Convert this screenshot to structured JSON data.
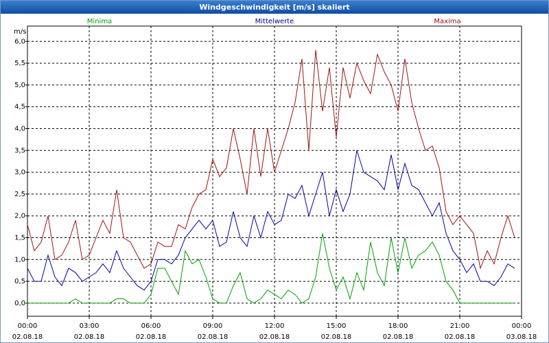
{
  "chart_data": {
    "type": "line",
    "title": "Windgeschwindigkeit [m/s] skaliert",
    "y_label": "m/s",
    "x": [
      0,
      20,
      40,
      60,
      80,
      100,
      120,
      140,
      160,
      180,
      200,
      220,
      240,
      260,
      280,
      300,
      320,
      340,
      360,
      380,
      400,
      420,
      440,
      460,
      480,
      500,
      520,
      540,
      560,
      580,
      600,
      620,
      640,
      660,
      680,
      700,
      720,
      740,
      760,
      780,
      800,
      820,
      840,
      860,
      880,
      900,
      920,
      940,
      960,
      980,
      1000,
      1020,
      1040,
      1060,
      1080,
      1100,
      1120,
      1140,
      1160,
      1180,
      1200,
      1220,
      1240,
      1260,
      1280,
      1300,
      1320,
      1340,
      1360,
      1380,
      1400,
      1420
    ],
    "xlim": [
      0,
      1440
    ],
    "xticks": [
      {
        "value": 0,
        "label": "00:00"
      },
      {
        "value": 180,
        "label": "03:00"
      },
      {
        "value": 360,
        "label": "06:00"
      },
      {
        "value": 540,
        "label": "09:00"
      },
      {
        "value": 720,
        "label": "12:00"
      },
      {
        "value": 900,
        "label": "15:00"
      },
      {
        "value": 1080,
        "label": "18:00"
      },
      {
        "value": 1260,
        "label": "21:00"
      },
      {
        "value": 1440,
        "label": "00:00"
      }
    ],
    "xtick_dates": [
      "02.08.18",
      "02.08.18",
      "02.08.18",
      "02.08.18",
      "02.08.18",
      "02.08.18",
      "02.08.18",
      "02.08.18",
      "03.08.18"
    ],
    "ylim": [
      -0.3,
      6.35
    ],
    "yticks": [
      {
        "value": 0,
        "label": "0,0"
      },
      {
        "value": 0.5,
        "label": "0,5"
      },
      {
        "value": 1,
        "label": "1,0"
      },
      {
        "value": 1.5,
        "label": "1,5"
      },
      {
        "value": 2,
        "label": "2,0"
      },
      {
        "value": 2.5,
        "label": "2,5"
      },
      {
        "value": 3,
        "label": "3,0"
      },
      {
        "value": 3.5,
        "label": "3,5"
      },
      {
        "value": 4,
        "label": "4,0"
      },
      {
        "value": 4.5,
        "label": "4,5"
      },
      {
        "value": 5,
        "label": "5,0"
      },
      {
        "value": 5.5,
        "label": "5,5"
      },
      {
        "value": 6,
        "label": "6,0"
      }
    ],
    "grid": true,
    "series": [
      {
        "name": "Minima",
        "color": "#00a000",
        "values": [
          0,
          0,
          0,
          0,
          0,
          0,
          0,
          0.1,
          0,
          0,
          0,
          0,
          0,
          0.1,
          0.1,
          0,
          0,
          0,
          0.2,
          0.8,
          0.8,
          0.5,
          0.2,
          1.2,
          0.9,
          1.0,
          0.6,
          0.1,
          0,
          0,
          0.4,
          0.7,
          0.1,
          0,
          0.1,
          0.3,
          0.2,
          0.1,
          0.3,
          0.2,
          0,
          0.1,
          0.6,
          1.6,
          0.8,
          0.3,
          0.6,
          0.1,
          0.7,
          0.3,
          1.4,
          0.7,
          0.4,
          1.5,
          0.7,
          1.5,
          0.8,
          1.1,
          1.2,
          1.4,
          1.1,
          0.5,
          0.3,
          0,
          0,
          0,
          0,
          0,
          0,
          0,
          0,
          0
        ]
      },
      {
        "name": "Mittelwerte",
        "color": "#0000a0",
        "values": [
          0.8,
          0.5,
          0.5,
          1.1,
          0.6,
          0.4,
          0.8,
          0.7,
          0.5,
          0.6,
          0.7,
          0.9,
          0.7,
          1.2,
          0.8,
          0.6,
          0.4,
          0.3,
          0.5,
          1.0,
          1.0,
          0.9,
          1.1,
          1.5,
          1.7,
          1.9,
          1.7,
          1.9,
          1.3,
          1.4,
          2.1,
          1.5,
          1.3,
          2.0,
          1.5,
          2.1,
          1.8,
          1.9,
          2.5,
          2.4,
          2.7,
          2.0,
          2.5,
          3.0,
          2.0,
          2.6,
          2.1,
          2.5,
          3.5,
          3.0,
          2.9,
          2.8,
          2.6,
          3.4,
          2.6,
          3.2,
          2.7,
          2.6,
          2.3,
          2.0,
          2.3,
          1.6,
          1.2,
          1.0,
          0.7,
          0.9,
          0.5,
          0.5,
          0.4,
          0.6,
          0.9,
          0.8
        ]
      },
      {
        "name": "Maxima",
        "color": "#a01010",
        "values": [
          1.8,
          1.2,
          1.4,
          2.0,
          1.0,
          1.1,
          1.4,
          1.9,
          1.0,
          1.1,
          1.5,
          1.9,
          1.6,
          2.6,
          1.5,
          1.4,
          1.1,
          0.8,
          0.9,
          1.4,
          1.3,
          1.3,
          1.8,
          1.7,
          2.2,
          2.5,
          2.6,
          3.3,
          2.9,
          3.1,
          4.0,
          3.3,
          2.5,
          4.0,
          2.9,
          4.0,
          3.0,
          3.5,
          4.0,
          4.6,
          5.6,
          3.5,
          5.8,
          4.4,
          5.4,
          3.8,
          5.4,
          4.7,
          5.5,
          5.1,
          4.8,
          5.7,
          5.3,
          5.0,
          4.4,
          5.6,
          4.6,
          4.0,
          3.5,
          3.6,
          3.1,
          2.1,
          1.8,
          2.0,
          1.8,
          1.6,
          0.8,
          1.2,
          0.9,
          1.5,
          2.0,
          1.5
        ]
      }
    ]
  }
}
